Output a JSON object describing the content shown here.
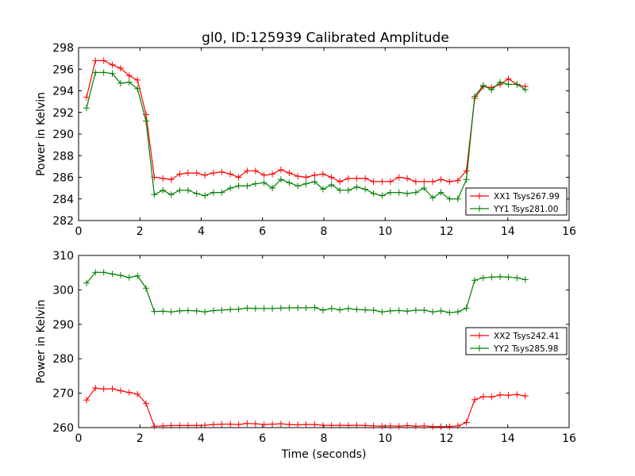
{
  "chart_data": [
    {
      "type": "line",
      "title": "gl0, ID:125939 Calibrated Amplitude",
      "xlabel": "",
      "ylabel": "Power in Kelvin",
      "xlim": [
        0,
        16
      ],
      "ylim": [
        282,
        298
      ],
      "xticks": [
        0,
        2,
        4,
        6,
        8,
        10,
        12,
        14,
        16
      ],
      "yticks": [
        282,
        284,
        286,
        288,
        290,
        292,
        294,
        296,
        298
      ],
      "legend_position": "lower-right",
      "grid": false,
      "x": [
        0.26,
        0.55,
        0.82,
        1.1,
        1.37,
        1.65,
        1.92,
        2.2,
        2.47,
        2.75,
        3.02,
        3.3,
        3.57,
        3.85,
        4.12,
        4.4,
        4.67,
        4.95,
        5.22,
        5.5,
        5.77,
        6.05,
        6.32,
        6.6,
        6.87,
        7.15,
        7.42,
        7.7,
        7.97,
        8.25,
        8.52,
        8.8,
        9.07,
        9.35,
        9.62,
        9.9,
        10.17,
        10.45,
        10.72,
        11.0,
        11.27,
        11.55,
        11.82,
        12.1,
        12.37,
        12.65,
        12.92,
        13.2,
        13.47,
        13.75,
        14.02,
        14.3,
        14.57
      ],
      "series": [
        {
          "name": "XX1 Tsys267.99",
          "color": "#ff0000",
          "values": [
            293.4,
            296.8,
            296.8,
            296.4,
            296.1,
            295.4,
            295.0,
            291.8,
            286.0,
            285.9,
            285.8,
            286.3,
            286.4,
            286.4,
            286.2,
            286.4,
            286.5,
            286.3,
            286.0,
            286.6,
            286.6,
            286.2,
            286.3,
            286.7,
            286.4,
            286.1,
            286.0,
            286.2,
            286.3,
            286.0,
            285.6,
            285.9,
            285.9,
            285.9,
            285.6,
            285.6,
            285.6,
            286.0,
            285.9,
            285.6,
            285.6,
            285.6,
            285.8,
            285.6,
            285.7,
            286.6,
            293.3,
            294.4,
            294.3,
            294.6,
            295.1,
            294.6,
            294.4
          ]
        },
        {
          "name": "YY1 Tsys281.00",
          "color": "#008000",
          "values": [
            292.4,
            295.7,
            295.7,
            295.6,
            294.7,
            294.8,
            294.2,
            291.2,
            284.4,
            284.8,
            284.4,
            284.8,
            284.8,
            284.5,
            284.3,
            284.6,
            284.6,
            285.0,
            285.2,
            285.2,
            285.4,
            285.5,
            285.0,
            285.8,
            285.5,
            285.2,
            285.4,
            285.6,
            284.9,
            285.3,
            284.8,
            284.8,
            285.1,
            284.9,
            284.5,
            284.3,
            284.6,
            284.6,
            284.5,
            284.6,
            285.0,
            284.1,
            284.6,
            284.0,
            284.0,
            285.8,
            293.5,
            294.5,
            294.1,
            294.8,
            294.6,
            294.6,
            294.1
          ]
        }
      ]
    },
    {
      "type": "line",
      "title": "",
      "xlabel": "Time (seconds)",
      "ylabel": "Power in Kelvin",
      "xlim": [
        0,
        16
      ],
      "ylim": [
        260,
        310
      ],
      "xticks": [
        0,
        2,
        4,
        6,
        8,
        10,
        12,
        14,
        16
      ],
      "yticks": [
        260,
        270,
        280,
        290,
        300,
        310
      ],
      "legend_position": "center-right",
      "grid": false,
      "x": [
        0.26,
        0.55,
        0.82,
        1.1,
        1.37,
        1.65,
        1.92,
        2.2,
        2.47,
        2.75,
        3.02,
        3.3,
        3.57,
        3.85,
        4.12,
        4.4,
        4.67,
        4.95,
        5.22,
        5.5,
        5.77,
        6.05,
        6.32,
        6.6,
        6.87,
        7.15,
        7.42,
        7.7,
        7.97,
        8.25,
        8.52,
        8.8,
        9.07,
        9.35,
        9.62,
        9.9,
        10.17,
        10.45,
        10.72,
        11.0,
        11.27,
        11.55,
        11.82,
        12.1,
        12.37,
        12.65,
        12.92,
        13.2,
        13.47,
        13.75,
        14.02,
        14.3,
        14.57
      ],
      "series": [
        {
          "name": "XX2 Tsys242.41",
          "color": "#ff0000",
          "values": [
            268.0,
            271.5,
            271.2,
            271.3,
            270.7,
            270.2,
            269.7,
            267.0,
            260.4,
            260.5,
            260.6,
            260.6,
            260.6,
            260.6,
            260.7,
            260.9,
            261.0,
            261.0,
            260.9,
            261.2,
            261.1,
            260.9,
            261.0,
            261.1,
            260.9,
            260.8,
            260.9,
            260.9,
            260.7,
            260.6,
            260.7,
            260.6,
            260.7,
            260.6,
            260.5,
            260.4,
            260.5,
            260.4,
            260.6,
            260.4,
            260.5,
            260.3,
            260.3,
            260.3,
            260.5,
            261.5,
            268.1,
            269.0,
            268.9,
            269.5,
            269.4,
            269.6,
            269.2
          ]
        },
        {
          "name": "YY2 Tsys285.98",
          "color": "#008000",
          "values": [
            302.0,
            305.1,
            305.1,
            304.6,
            304.2,
            303.6,
            304.1,
            300.5,
            293.7,
            293.8,
            293.6,
            293.9,
            294.0,
            293.9,
            293.6,
            294.0,
            294.1,
            294.3,
            294.4,
            294.7,
            294.6,
            294.6,
            294.6,
            294.7,
            294.8,
            294.8,
            294.8,
            294.9,
            294.1,
            294.6,
            294.2,
            294.6,
            294.3,
            294.2,
            294.1,
            293.6,
            293.9,
            294.0,
            293.8,
            294.1,
            294.1,
            293.6,
            293.9,
            293.4,
            293.6,
            294.7,
            302.8,
            303.5,
            303.7,
            303.8,
            303.7,
            303.5,
            303.0
          ]
        }
      ]
    }
  ]
}
